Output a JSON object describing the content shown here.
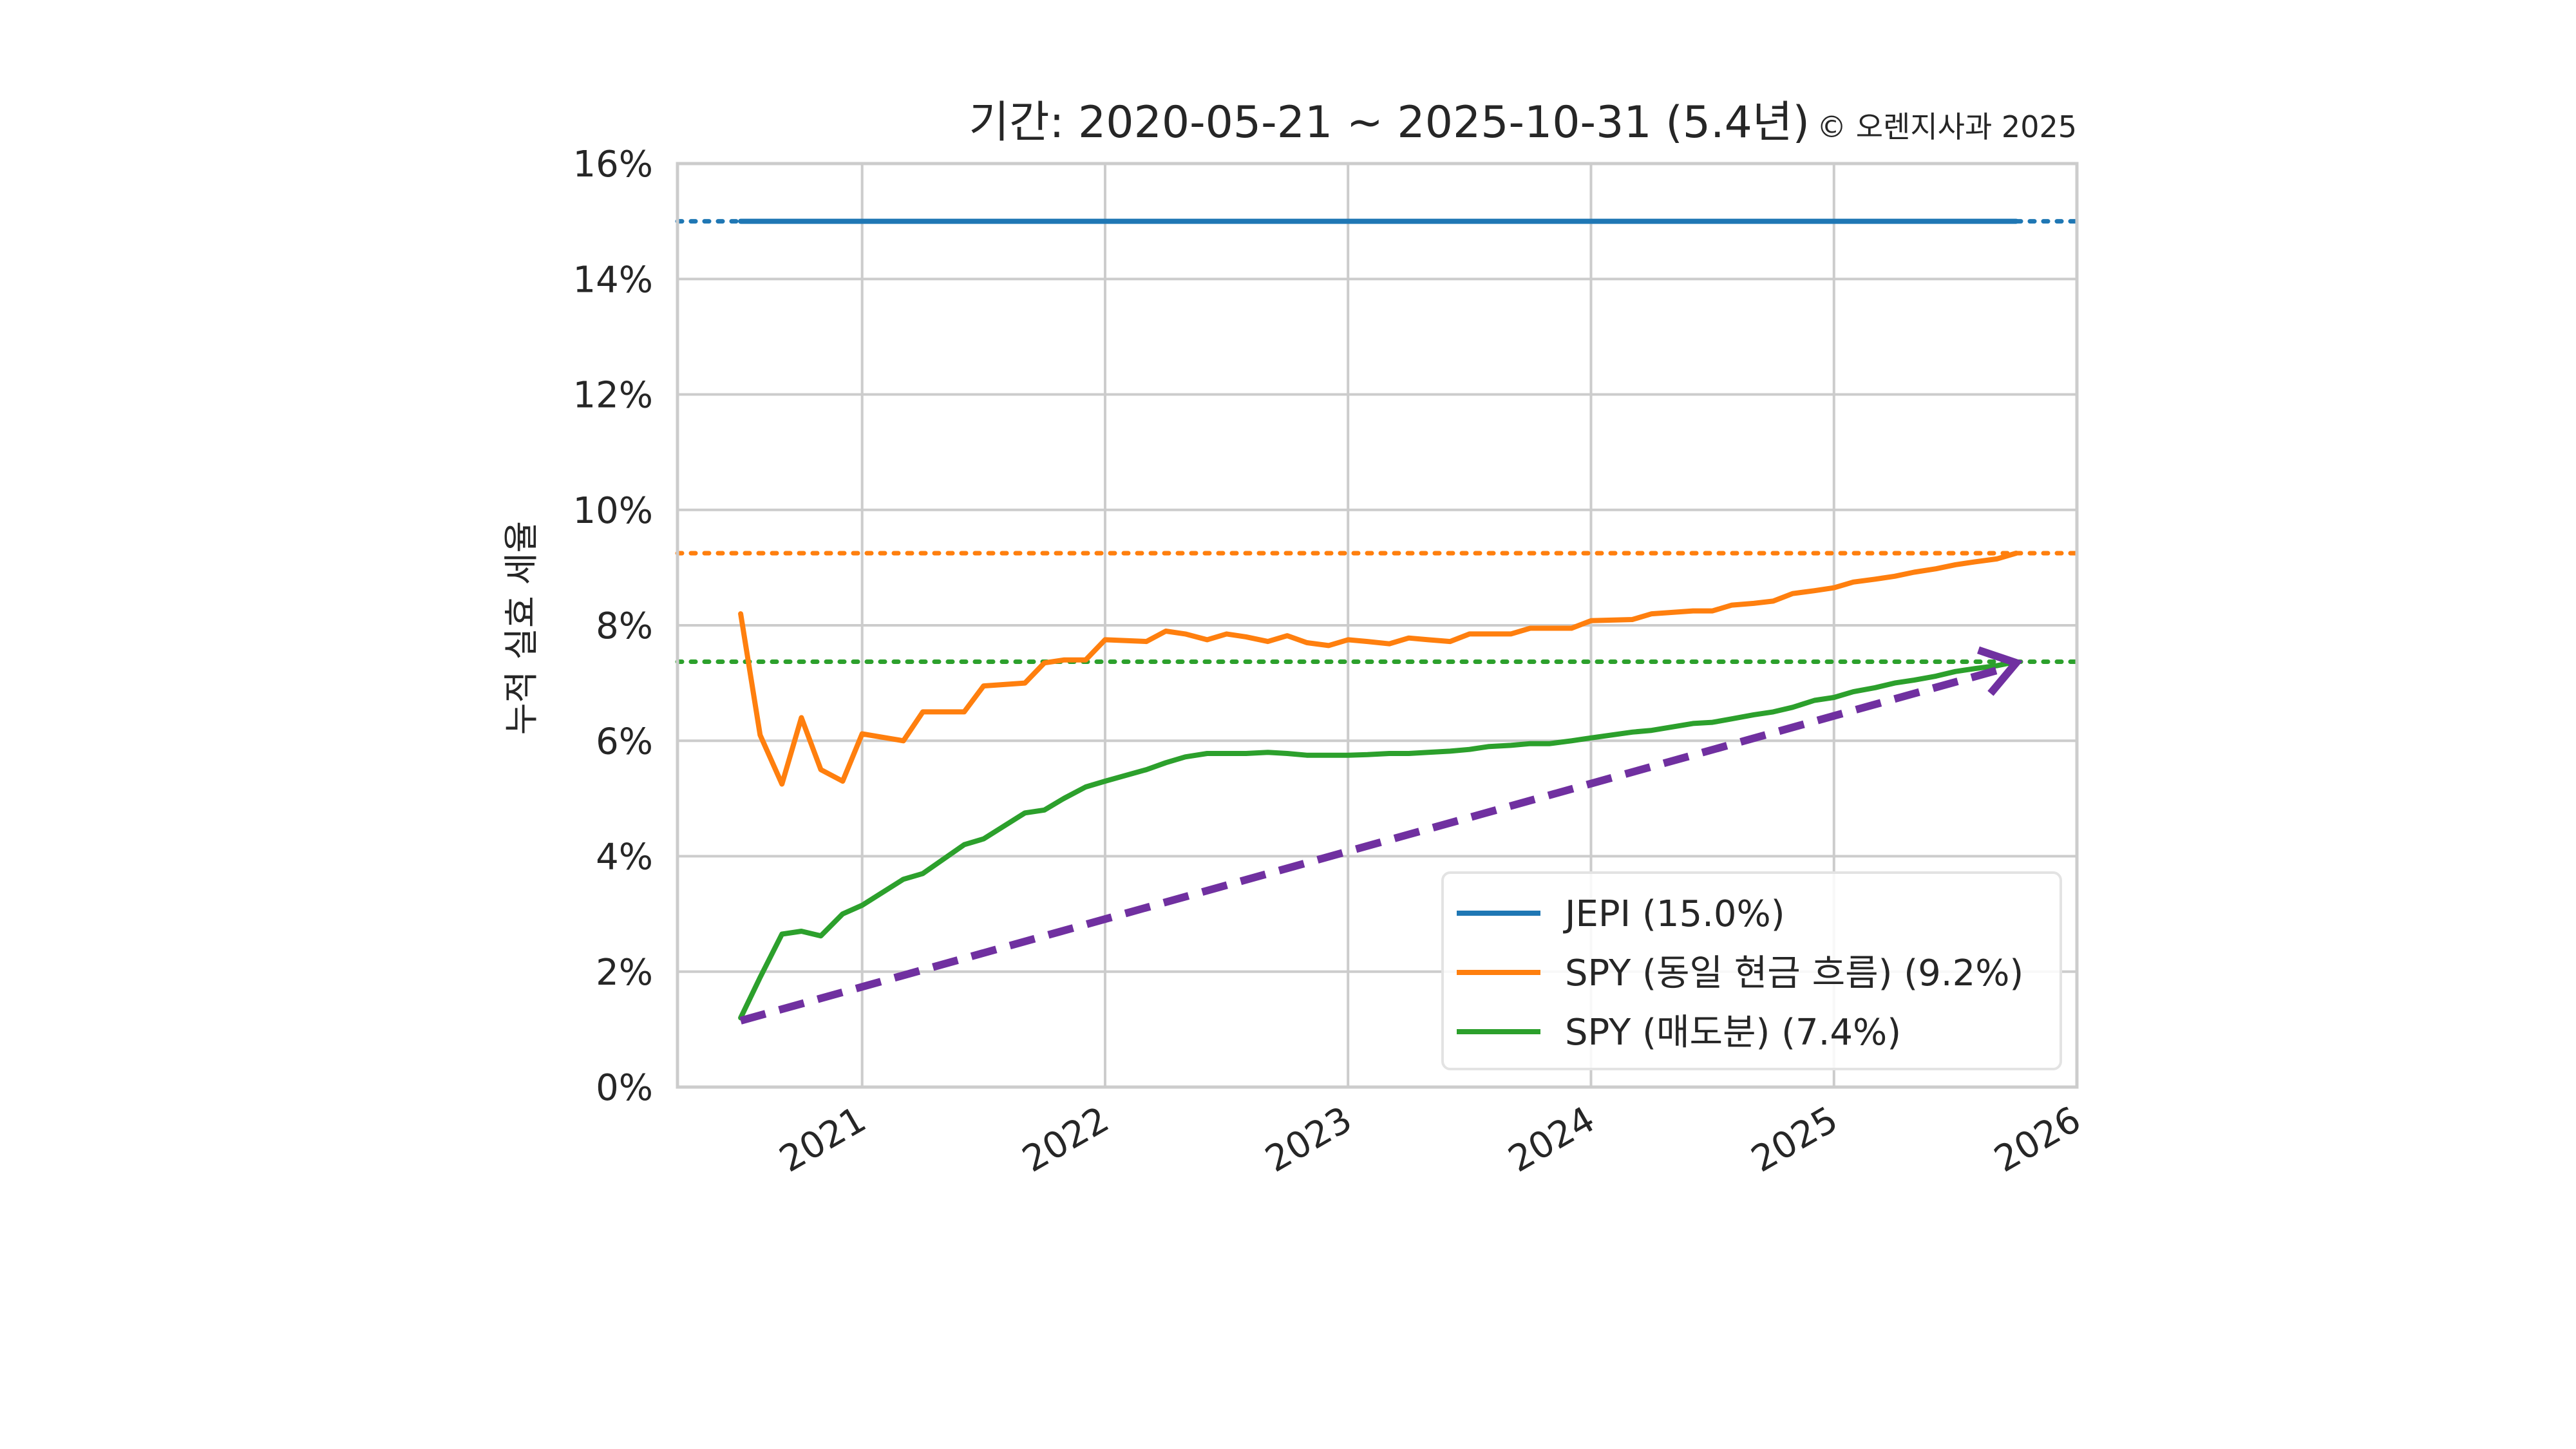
{
  "chart_data": {
    "type": "line",
    "title": "기간: 2020-05-21 ~ 2025-10-31 (5.4년)",
    "copyright": "© 오렌지사과 2025",
    "xlabel": "",
    "ylabel": "누적 실효 세율",
    "ylim": [
      0,
      16
    ],
    "xlim": [
      2020.24,
      2026.0
    ],
    "yticks": [
      0,
      2,
      4,
      6,
      8,
      10,
      12,
      14,
      16
    ],
    "ytick_labels": [
      "0%",
      "2%",
      "4%",
      "6%",
      "8%",
      "10%",
      "12%",
      "14%",
      "16%"
    ],
    "xticks": [
      2021,
      2022,
      2023,
      2024,
      2025,
      2026
    ],
    "xtick_labels": [
      "2021",
      "2022",
      "2023",
      "2024",
      "2025",
      "2026"
    ],
    "grid": true,
    "legend_position": "lower-right",
    "colors": {
      "jepi": "#1f77b4",
      "spy_same": "#ff7f0e",
      "spy_sold": "#2ca02c",
      "trend": "#7030a0"
    },
    "x": [
      2020.5,
      2020.58,
      2020.67,
      2020.75,
      2020.83,
      2020.92,
      2021.0,
      2021.17,
      2021.25,
      2021.42,
      2021.5,
      2021.67,
      2021.75,
      2021.83,
      2021.92,
      2022.0,
      2022.17,
      2022.25,
      2022.33,
      2022.42,
      2022.5,
      2022.58,
      2022.67,
      2022.75,
      2022.83,
      2022.92,
      2023.0,
      2023.08,
      2023.17,
      2023.25,
      2023.33,
      2023.42,
      2023.5,
      2023.58,
      2023.67,
      2023.75,
      2023.83,
      2023.92,
      2024.0,
      2024.17,
      2024.25,
      2024.42,
      2024.5,
      2024.58,
      2024.67,
      2024.75,
      2024.83,
      2024.92,
      2025.0,
      2025.08,
      2025.17,
      2025.25,
      2025.33,
      2025.42,
      2025.5,
      2025.58,
      2025.67,
      2025.75
    ],
    "series": [
      {
        "name": "JEPI (15.0%)",
        "reference": 15.0,
        "values": [
          15.0,
          15.0,
          15.0,
          15.0,
          15.0,
          15.0,
          15.0,
          15.0,
          15.0,
          15.0,
          15.0,
          15.0,
          15.0,
          15.0,
          15.0,
          15.0,
          15.0,
          15.0,
          15.0,
          15.0,
          15.0,
          15.0,
          15.0,
          15.0,
          15.0,
          15.0,
          15.0,
          15.0,
          15.0,
          15.0,
          15.0,
          15.0,
          15.0,
          15.0,
          15.0,
          15.0,
          15.0,
          15.0,
          15.0,
          15.0,
          15.0,
          15.0,
          15.0,
          15.0,
          15.0,
          15.0,
          15.0,
          15.0,
          15.0,
          15.0,
          15.0,
          15.0,
          15.0,
          15.0,
          15.0,
          15.0,
          15.0,
          15.0
        ]
      },
      {
        "name": "SPY (동일 현금 흐름) (9.2%)",
        "reference": 9.25,
        "values": [
          8.2,
          6.1,
          5.25,
          6.4,
          5.5,
          5.3,
          6.12,
          6.0,
          6.5,
          6.5,
          6.95,
          7.0,
          7.35,
          7.4,
          7.4,
          7.75,
          7.72,
          7.9,
          7.85,
          7.75,
          7.85,
          7.8,
          7.72,
          7.82,
          7.7,
          7.65,
          7.75,
          7.72,
          7.68,
          7.78,
          7.75,
          7.72,
          7.85,
          7.85,
          7.85,
          7.95,
          7.95,
          7.95,
          8.08,
          8.1,
          8.2,
          8.25,
          8.25,
          8.35,
          8.38,
          8.42,
          8.55,
          8.6,
          8.65,
          8.75,
          8.8,
          8.85,
          8.92,
          8.98,
          9.05,
          9.1,
          9.15,
          9.25
        ]
      },
      {
        "name": "SPY (매도분) (7.4%)",
        "reference": 7.37,
        "values": [
          1.2,
          1.9,
          2.65,
          2.7,
          2.62,
          3.0,
          3.15,
          3.6,
          3.7,
          4.2,
          4.3,
          4.75,
          4.8,
          5.0,
          5.2,
          5.3,
          5.5,
          5.62,
          5.72,
          5.78,
          5.78,
          5.78,
          5.8,
          5.78,
          5.75,
          5.75,
          5.75,
          5.76,
          5.78,
          5.78,
          5.8,
          5.82,
          5.85,
          5.9,
          5.92,
          5.95,
          5.95,
          6.0,
          6.05,
          6.15,
          6.18,
          6.3,
          6.32,
          6.38,
          6.45,
          6.5,
          6.58,
          6.7,
          6.75,
          6.85,
          6.92,
          7.0,
          7.05,
          7.12,
          7.2,
          7.25,
          7.3,
          7.37
        ]
      }
    ],
    "trend_arrow": {
      "from": [
        2020.5,
        1.15
      ],
      "to": [
        2025.75,
        7.35
      ]
    }
  }
}
